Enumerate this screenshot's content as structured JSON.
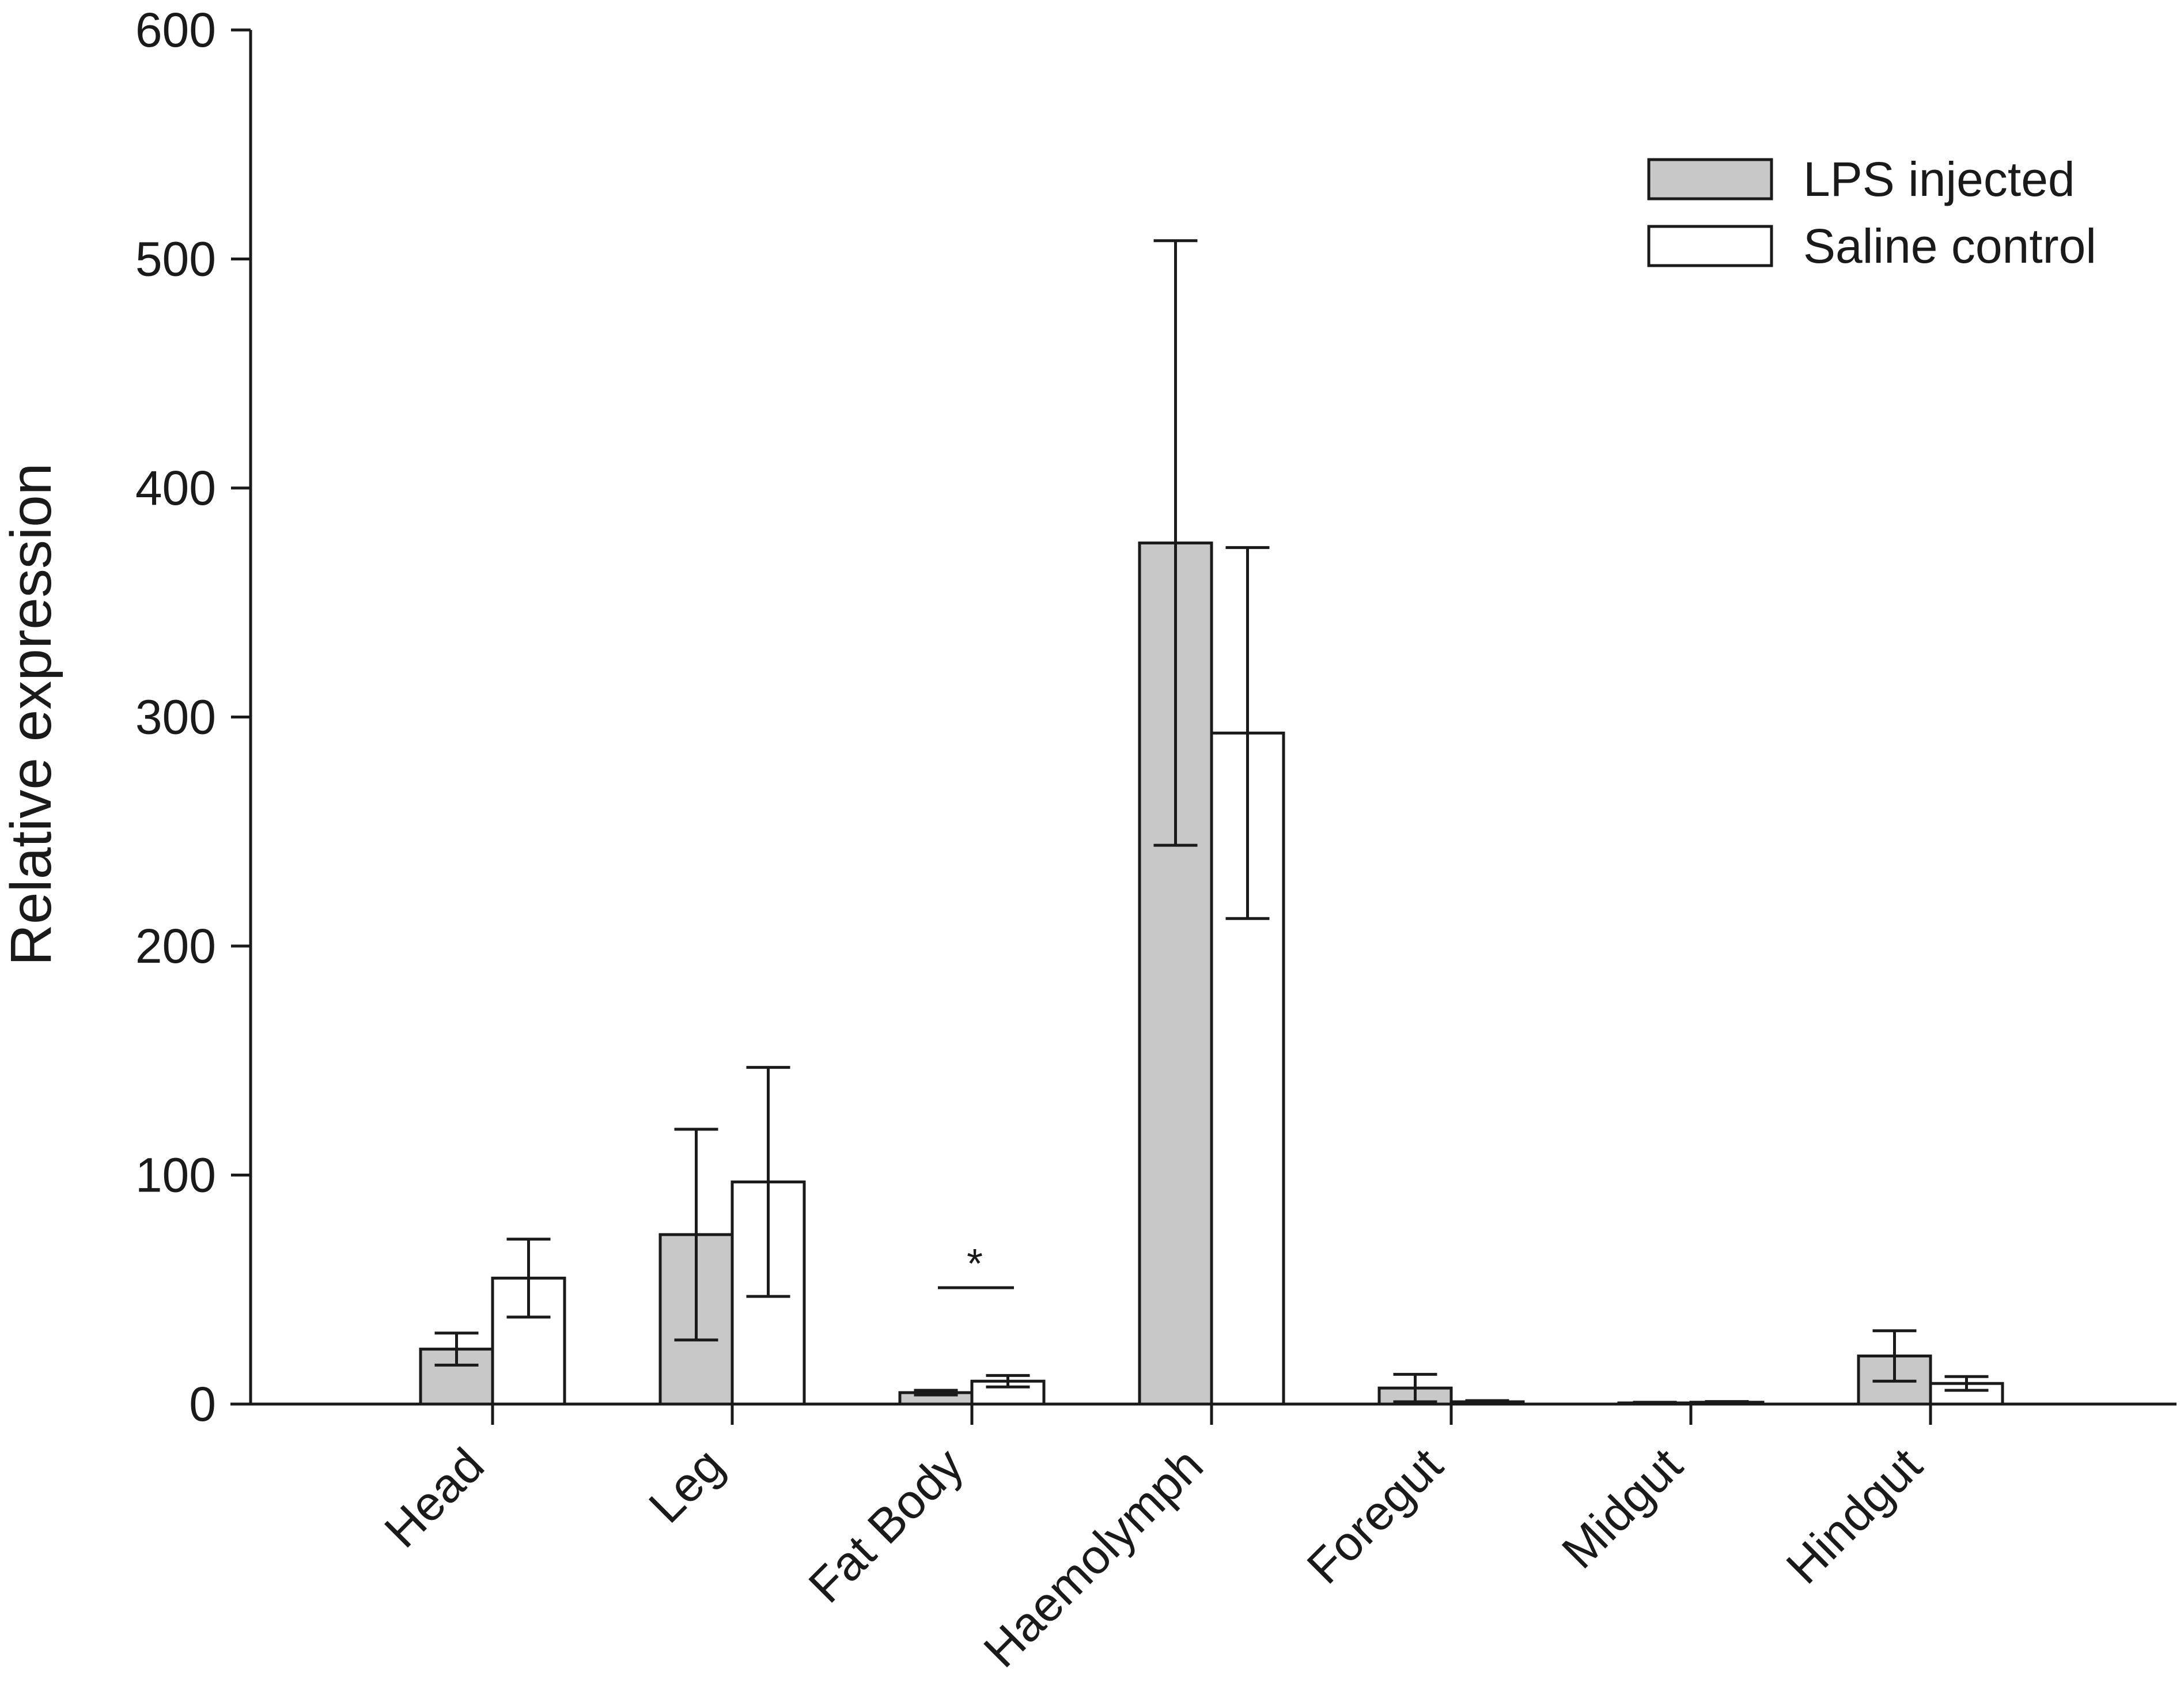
{
  "chart_data": {
    "type": "bar",
    "title": "",
    "xlabel": "",
    "ylabel": "Relative expression",
    "ylim": [
      0,
      600
    ],
    "yticks": [
      0,
      100,
      200,
      300,
      400,
      500,
      600
    ],
    "yticks_text": [
      "0",
      "100",
      "200",
      "300",
      "400",
      "500",
      "600"
    ],
    "categories": [
      "Head",
      "Leg",
      "Fat Body",
      "Haemolymph",
      "Foregut",
      "Midgut",
      "Hindgut"
    ],
    "series": [
      {
        "name": "LPS injected",
        "color": "#c8c8c8",
        "values": [
          24,
          74,
          5,
          376,
          7,
          0.5,
          21
        ],
        "error": [
          7,
          46,
          1,
          132,
          6,
          0.3,
          11
        ]
      },
      {
        "name": "Saline control",
        "color": "#ffffff",
        "values": [
          55,
          97,
          10,
          293,
          1,
          0.8,
          9
        ],
        "error": [
          17,
          50,
          2.5,
          81,
          0.5,
          0.3,
          3
        ]
      }
    ],
    "annotations": [
      {
        "category": "Fat Body",
        "text": "*",
        "y": 50
      }
    ],
    "legend_position": "top-right",
    "grid": false
  }
}
